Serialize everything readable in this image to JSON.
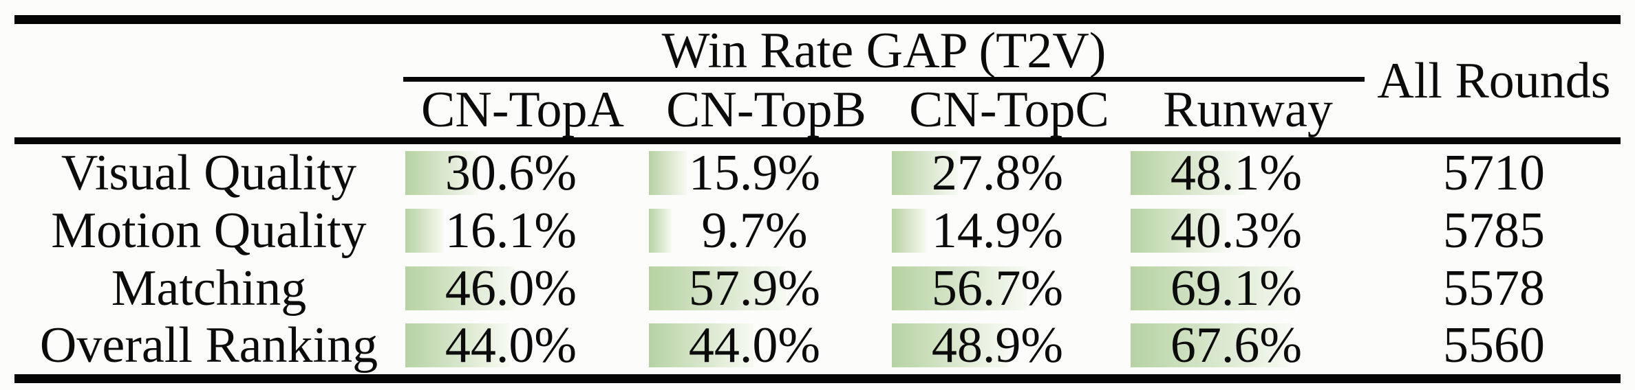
{
  "table": {
    "group_title": "Win Rate GAP (T2V)",
    "all_rounds_header": "All Rounds",
    "columns": [
      "CN-TopA",
      "CN-TopB",
      "CN-TopC",
      "Runway"
    ],
    "rows": [
      {
        "label": "Visual Quality",
        "cells": [
          {
            "text": "30.6%",
            "value": 30.6
          },
          {
            "text": "15.9%",
            "value": 15.9
          },
          {
            "text": "27.8%",
            "value": 27.8
          },
          {
            "text": "48.1%",
            "value": 48.1
          }
        ],
        "all_rounds": "5710"
      },
      {
        "label": "Motion Quality",
        "cells": [
          {
            "text": "16.1%",
            "value": 16.1
          },
          {
            "text": "9.7%",
            "value": 9.7
          },
          {
            "text": "14.9%",
            "value": 14.9
          },
          {
            "text": "40.3%",
            "value": 40.3
          }
        ],
        "all_rounds": "5785"
      },
      {
        "label": "Matching",
        "cells": [
          {
            "text": "46.0%",
            "value": 46.0
          },
          {
            "text": "57.9%",
            "value": 57.9
          },
          {
            "text": "56.7%",
            "value": 56.7
          },
          {
            "text": "69.1%",
            "value": 69.1
          }
        ],
        "all_rounds": "5578"
      },
      {
        "label": "Overall Ranking",
        "cells": [
          {
            "text": "44.0%",
            "value": 44.0
          },
          {
            "text": "44.0%",
            "value": 44.0
          },
          {
            "text": "48.9%",
            "value": 48.9
          },
          {
            "text": "67.6%",
            "value": 67.6
          }
        ],
        "all_rounds": "5560"
      }
    ],
    "colors": {
      "bar_start": "#b6d2a2",
      "bar_end": "#f7faf2",
      "rule": "#050505",
      "text": "#0b0b0b"
    }
  },
  "chart_data": {
    "type": "table",
    "title": "Win Rate GAP (T2V)",
    "categories": [
      "CN-TopA",
      "CN-TopB",
      "CN-TopC",
      "Runway"
    ],
    "row_labels": [
      "Visual Quality",
      "Motion Quality",
      "Matching",
      "Overall Ranking"
    ],
    "series": [
      {
        "name": "Visual Quality",
        "values": [
          30.6,
          15.9,
          27.8,
          48.1
        ]
      },
      {
        "name": "Motion Quality",
        "values": [
          16.1,
          9.7,
          14.9,
          40.3
        ]
      },
      {
        "name": "Matching",
        "values": [
          46.0,
          57.9,
          56.7,
          69.1
        ]
      },
      {
        "name": "Overall Ranking",
        "values": [
          44.0,
          44.0,
          48.9,
          67.6
        ]
      }
    ],
    "all_rounds_column": {
      "label": "All Rounds",
      "values": [
        5710,
        5785,
        5578,
        5560
      ]
    },
    "value_unit": "%",
    "bar_scale": "data bars left-aligned in cell, width proportional to percentage of column width",
    "value_range": [
      0,
      100
    ]
  }
}
